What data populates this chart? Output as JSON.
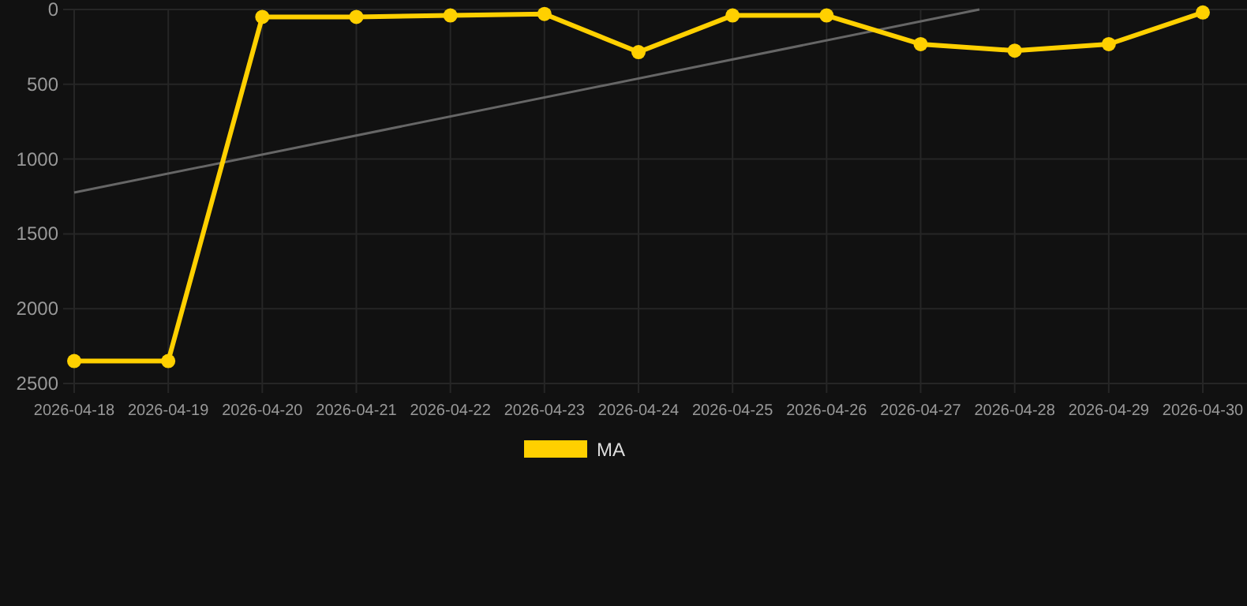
{
  "chart_data": {
    "type": "line",
    "x": [
      "2026-04-18",
      "2026-04-19",
      "2026-04-20",
      "2026-04-21",
      "2026-04-22",
      "2026-04-23",
      "2026-04-24",
      "2026-04-25",
      "2026-04-26",
      "2026-04-27",
      "2026-04-28",
      "2026-04-29",
      "2026-04-30"
    ],
    "series": [
      {
        "name": "MA",
        "color": "#ffd000",
        "marker": "circle",
        "values": [
          2350,
          2350,
          50,
          50,
          40,
          30,
          285,
          40,
          40,
          232,
          275,
          232,
          20
        ]
      },
      {
        "type": "line",
        "color": "#666666",
        "marker": "none",
        "x": [
          "2026-04-18",
          "2026-04-27T15:00"
        ],
        "values": [
          1224,
          0
        ]
      }
    ],
    "xlim": [
      "2026-04-18",
      "2026-04-30"
    ],
    "xticks": [
      "2026-04-18",
      "2026-04-19",
      "2026-04-20",
      "2026-04-21",
      "2026-04-22",
      "2026-04-23",
      "2026-04-24",
      "2026-04-25",
      "2026-04-26",
      "2026-04-27",
      "2026-04-28",
      "2026-04-29",
      "2026-04-30"
    ],
    "ylim": [
      2500,
      0
    ],
    "yticks": [
      0,
      500,
      1000,
      1500,
      2000,
      2500
    ],
    "grid": true,
    "legend": "bottom",
    "line_style": "solid"
  }
}
